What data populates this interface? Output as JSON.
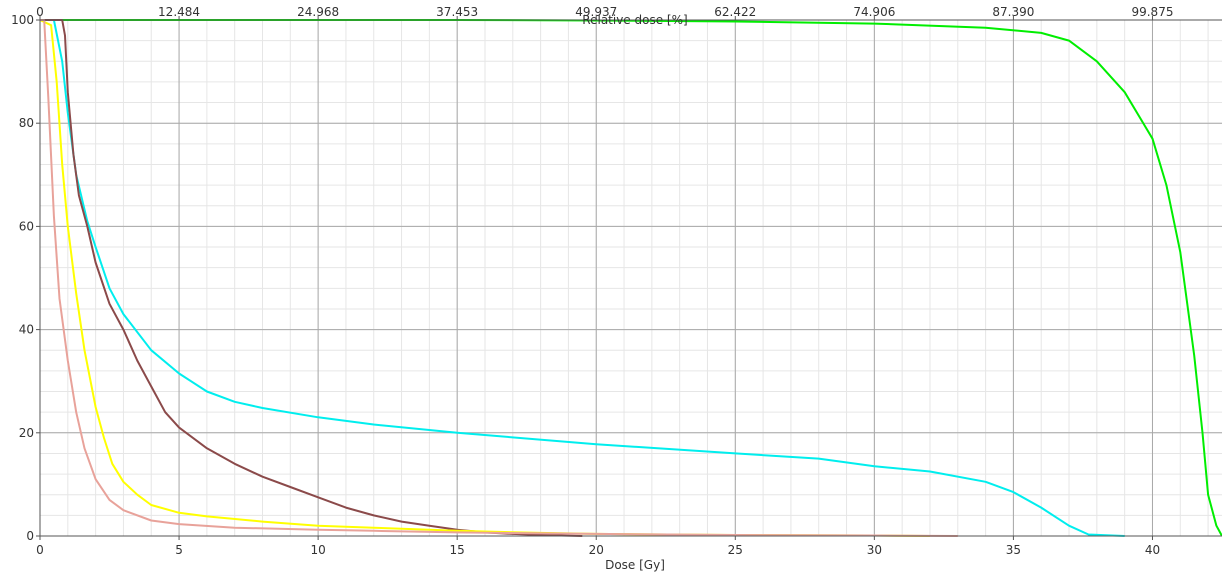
{
  "chart_data": {
    "type": "line",
    "xlabel": "Dose [Gy]",
    "x2label": "Relative dose [%]",
    "ylabel": "",
    "xlim": [
      0,
      42.5
    ],
    "ylim": [
      0,
      100
    ],
    "x_ticks": [
      0,
      5,
      10,
      15,
      20,
      25,
      30,
      35,
      40
    ],
    "y_ticks": [
      0,
      20,
      40,
      60,
      80,
      100
    ],
    "top_ticks": [
      "0",
      "12.484",
      "24.968",
      "37.453",
      "49.937",
      "62.422",
      "74.906",
      "87.390",
      "99.875"
    ],
    "top_tick_dose": [
      0,
      5,
      10,
      15,
      20,
      25,
      30,
      35,
      40
    ],
    "grid": true,
    "series": [
      {
        "color": "#00ee00",
        "points": [
          [
            0,
            100
          ],
          [
            5,
            100
          ],
          [
            10,
            100
          ],
          [
            15,
            100
          ],
          [
            20,
            99.9
          ],
          [
            25,
            99.7
          ],
          [
            30,
            99.3
          ],
          [
            34,
            98.5
          ],
          [
            36,
            97.5
          ],
          [
            37,
            96
          ],
          [
            38,
            92
          ],
          [
            39,
            86
          ],
          [
            40,
            77
          ],
          [
            40.5,
            68
          ],
          [
            41,
            55
          ],
          [
            41.5,
            35
          ],
          [
            41.8,
            20
          ],
          [
            42,
            8
          ],
          [
            42.3,
            2
          ],
          [
            42.5,
            0
          ]
        ]
      },
      {
        "color": "#00eeee",
        "points": [
          [
            0,
            100
          ],
          [
            0.5,
            100
          ],
          [
            0.8,
            92
          ],
          [
            1,
            82
          ],
          [
            1.3,
            70
          ],
          [
            1.7,
            61
          ],
          [
            2,
            56
          ],
          [
            2.5,
            48
          ],
          [
            3,
            43
          ],
          [
            4,
            36
          ],
          [
            5,
            31.5
          ],
          [
            6,
            28
          ],
          [
            7,
            26
          ],
          [
            8,
            24.8
          ],
          [
            10,
            23
          ],
          [
            12,
            21.6
          ],
          [
            15,
            20
          ],
          [
            20,
            17.8
          ],
          [
            25,
            16
          ],
          [
            28,
            15
          ],
          [
            30,
            13.5
          ],
          [
            32,
            12.5
          ],
          [
            34,
            10.5
          ],
          [
            35,
            8.5
          ],
          [
            36,
            5.5
          ],
          [
            37,
            2
          ],
          [
            37.7,
            0.3
          ],
          [
            39,
            0
          ]
        ]
      },
      {
        "color": "#8b4a4a",
        "points": [
          [
            0,
            100
          ],
          [
            0.8,
            100
          ],
          [
            0.9,
            97
          ],
          [
            1,
            86
          ],
          [
            1.2,
            74
          ],
          [
            1.4,
            66
          ],
          [
            1.7,
            60
          ],
          [
            2,
            53
          ],
          [
            2.5,
            45
          ],
          [
            3,
            40
          ],
          [
            3.5,
            34
          ],
          [
            4,
            29
          ],
          [
            4.5,
            24
          ],
          [
            5,
            21
          ],
          [
            6,
            17
          ],
          [
            7,
            14
          ],
          [
            8,
            11.5
          ],
          [
            9,
            9.5
          ],
          [
            10,
            7.5
          ],
          [
            11,
            5.5
          ],
          [
            12,
            4
          ],
          [
            13,
            2.8
          ],
          [
            14,
            2
          ],
          [
            15,
            1.2
          ],
          [
            16,
            0.7
          ],
          [
            17,
            0.4
          ],
          [
            18,
            0.2
          ],
          [
            19.5,
            0
          ]
        ]
      },
      {
        "color": "#ffff00",
        "points": [
          [
            0,
            100
          ],
          [
            0.4,
            99
          ],
          [
            0.6,
            88
          ],
          [
            0.8,
            72
          ],
          [
            1,
            60
          ],
          [
            1.3,
            47
          ],
          [
            1.6,
            36
          ],
          [
            2,
            25
          ],
          [
            2.3,
            19
          ],
          [
            2.6,
            14
          ],
          [
            3,
            10.5
          ],
          [
            3.5,
            8
          ],
          [
            4,
            6
          ],
          [
            5,
            4.5
          ],
          [
            6,
            3.8
          ],
          [
            8,
            2.8
          ],
          [
            10,
            2
          ],
          [
            12,
            1.6
          ],
          [
            15,
            1
          ],
          [
            18,
            0.6
          ],
          [
            20,
            0.4
          ],
          [
            25,
            0.2
          ],
          [
            30,
            0.1
          ],
          [
            32,
            0
          ]
        ]
      },
      {
        "color": "#e8a29a",
        "points": [
          [
            0,
            100
          ],
          [
            0.15,
            100
          ],
          [
            0.3,
            85
          ],
          [
            0.5,
            62
          ],
          [
            0.7,
            46
          ],
          [
            1,
            34
          ],
          [
            1.3,
            24
          ],
          [
            1.6,
            17
          ],
          [
            2,
            11
          ],
          [
            2.5,
            7
          ],
          [
            3,
            5
          ],
          [
            4,
            3
          ],
          [
            5,
            2.3
          ],
          [
            7,
            1.6
          ],
          [
            10,
            1.2
          ],
          [
            12,
            1
          ],
          [
            15,
            0.7
          ],
          [
            20,
            0.4
          ],
          [
            25,
            0.2
          ],
          [
            30,
            0.1
          ],
          [
            33,
            0
          ]
        ]
      }
    ]
  }
}
